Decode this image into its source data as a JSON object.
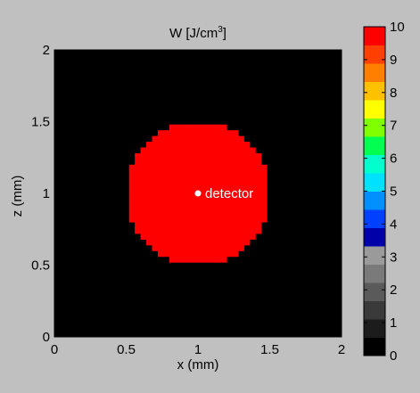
{
  "chart_data": {
    "type": "heatmap",
    "title": "W [J/cm",
    "title_superscript": "3",
    "title_suffix": "]",
    "xlabel": "x (mm)",
    "ylabel": "z (mm)",
    "xlim": [
      0,
      2
    ],
    "ylim": [
      0,
      2
    ],
    "xticks": [
      0,
      0.5,
      1,
      1.5,
      2
    ],
    "yticks": [
      0,
      0.5,
      1,
      1.5,
      2
    ],
    "xtick_labels": [
      "0",
      "0.5",
      "1",
      "1.5",
      "2"
    ],
    "ytick_labels": [
      "0",
      "0.5",
      "1",
      "1.5",
      "2"
    ],
    "grid_resolution_mm": 0.04,
    "background_value": 0,
    "region": {
      "shape": "disc",
      "center_x_mm": 1,
      "center_z_mm": 1,
      "radius_mm": 0.5,
      "value": 10
    },
    "annotation": {
      "text": "detector",
      "x_mm": 1,
      "z_mm": 1,
      "color": "#ffffff"
    },
    "colorbar": {
      "colormap": "jet-like, black at 0",
      "range": [
        0,
        10
      ],
      "ticks": [
        0,
        1,
        2,
        3,
        4,
        5,
        6,
        7,
        8,
        9,
        10
      ],
      "tick_labels": [
        "0",
        "1",
        "2",
        "3",
        "4",
        "5",
        "6",
        "7",
        "8",
        "9",
        "10"
      ],
      "colors": [
        "#000000",
        "#1c1c1c",
        "#3a3a3a",
        "#5a5a5a",
        "#7a7a7a",
        "#9a9a9a",
        "#0000aa",
        "#0040ff",
        "#0090ff",
        "#00e0ff",
        "#00ffcc",
        "#00ff50",
        "#80ff00",
        "#ffff00",
        "#ffc000",
        "#ff8000",
        "#ff4000",
        "#ff0000"
      ]
    }
  }
}
